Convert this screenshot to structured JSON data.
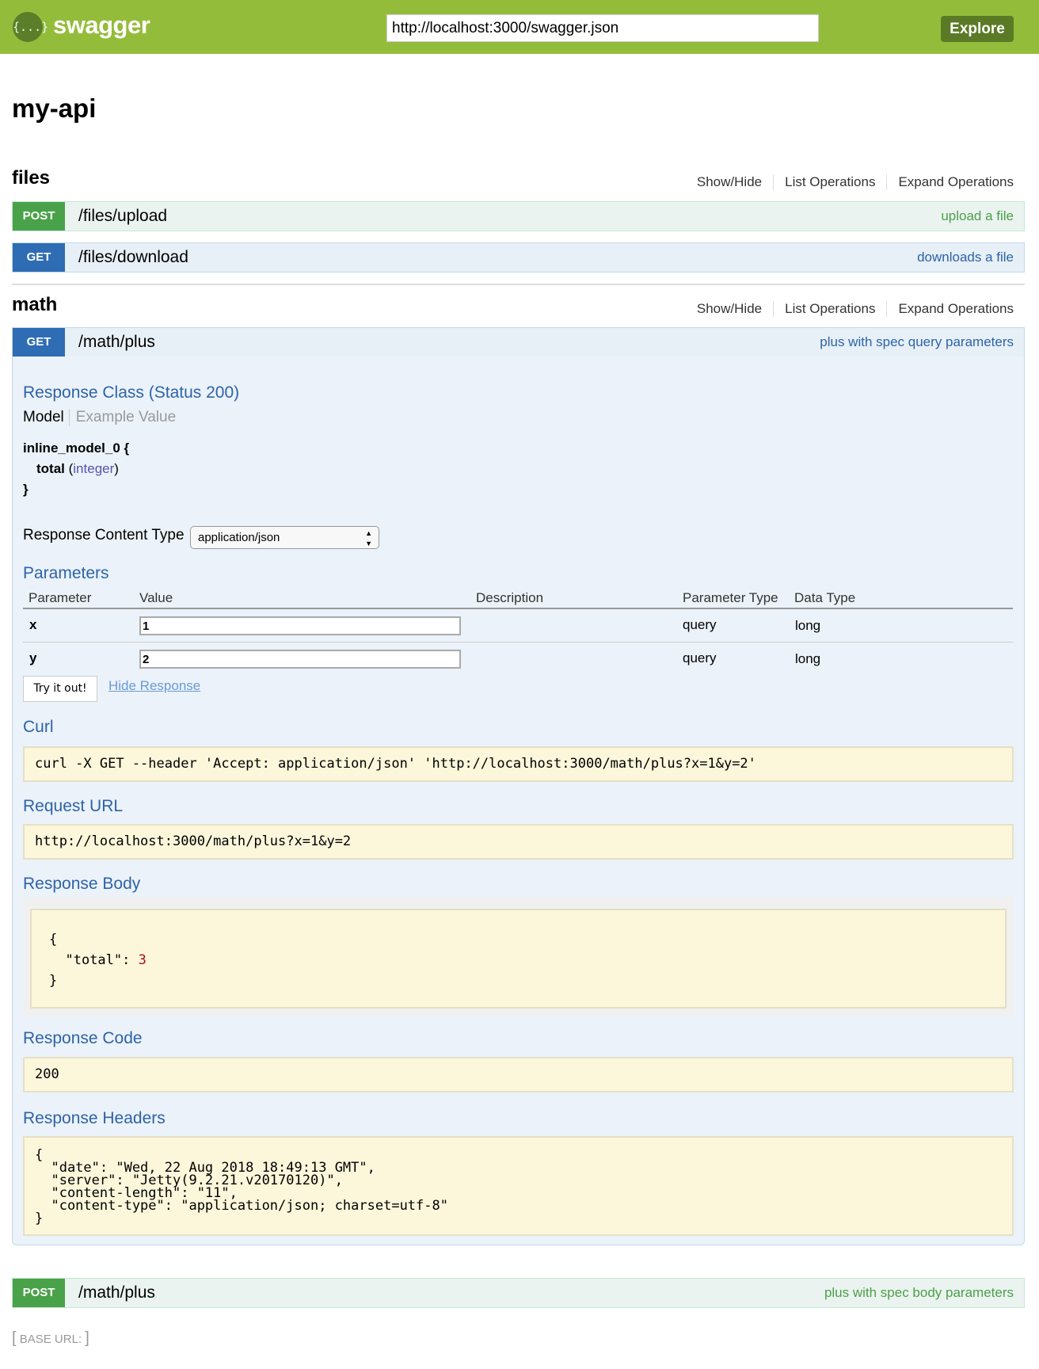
{
  "header": {
    "logo_icon": "{...}",
    "logo_text": "swagger",
    "url": "http://localhost:3000/swagger.json",
    "explore": "Explore",
    "colors": {
      "bar": "#94bc3b",
      "button": "#5a7a26"
    }
  },
  "title": "my-api",
  "sections": [
    {
      "name": "files",
      "links": [
        "Show/Hide",
        "List Operations",
        "Expand Operations"
      ],
      "ops": [
        {
          "method": "POST",
          "path": "/files/upload",
          "summary": "upload a file"
        },
        {
          "method": "GET",
          "path": "/files/download",
          "summary": "downloads a file"
        }
      ]
    },
    {
      "name": "math",
      "links": [
        "Show/Hide",
        "List Operations",
        "Expand Operations"
      ],
      "ops": [
        {
          "method": "GET",
          "path": "/math/plus",
          "summary": "plus with spec query parameters"
        },
        {
          "method": "POST",
          "path": "/math/plus",
          "summary": "plus with spec body parameters"
        }
      ]
    }
  ],
  "panel": {
    "response_class": "Response Class (Status 200)",
    "tabs": [
      "Model",
      "Example Value"
    ],
    "model": {
      "open": "inline_model_0 {",
      "field": "total",
      "type": "integer",
      "close": "}"
    },
    "content_type_label": "Response Content Type",
    "content_type": "application/json",
    "parameters_title": "Parameters",
    "columns": [
      "Parameter",
      "Value",
      "Description",
      "Parameter Type",
      "Data Type"
    ],
    "params": [
      {
        "name": "x",
        "value": "1",
        "ptype": "query",
        "dtype": "long"
      },
      {
        "name": "y",
        "value": "2",
        "ptype": "query",
        "dtype": "long"
      }
    ],
    "try_button": "Try it out!",
    "hide_response": "Hide Response",
    "curl_title": "Curl",
    "curl": "curl -X GET --header 'Accept: application/json' 'http://localhost:3000/math/plus?x=1&y=2'",
    "request_url_title": "Request URL",
    "request_url": "http://localhost:3000/math/plus?x=1&y=2",
    "response_body_title": "Response Body",
    "body_open": "{",
    "body_key": "\"total\": ",
    "body_value": "3",
    "body_close": "}",
    "response_code_title": "Response Code",
    "response_code": "200",
    "response_headers_title": "Response Headers",
    "headers": [
      "{",
      "  \"date\": \"Wed, 22 Aug 2018 18:49:13 GMT\",",
      "  \"server\": \"Jetty(9.2.21.v20170120)\",",
      "  \"content-length\": \"11\",",
      "  \"content-type\": \"application/json; charset=utf-8\"",
      "}"
    ]
  },
  "footer": {
    "open": "[",
    "label": "BASE URL",
    "colon": ":",
    "close": "]"
  }
}
